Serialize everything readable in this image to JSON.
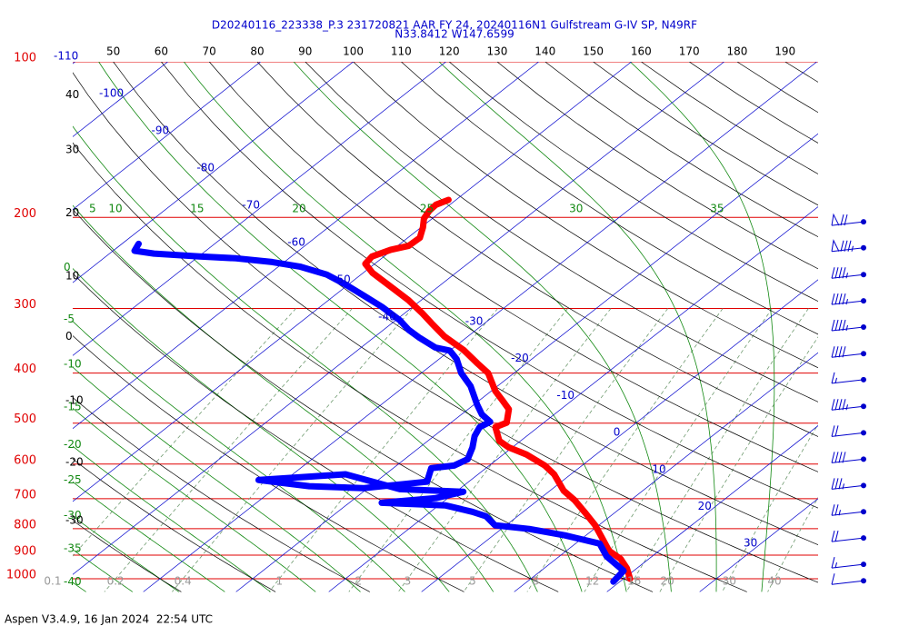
{
  "chart_data": {
    "type": "skewt",
    "title": "D20240116_223338_P.3 231720821 AAR FY 24, 20240116N1 Gulfstream G-IV SP, N49RF",
    "subtitle": "N33.8412 W147.6599",
    "footer": "Aspen V3.4.9, 16 Jan 2024  22:54 UTC",
    "log_y": true,
    "ylim": [
      100,
      1000
    ],
    "yticks": [
      100,
      200,
      300,
      400,
      500,
      600,
      700,
      800,
      900,
      1000
    ],
    "pressure_color": "#e00000",
    "isotherms": {
      "color": "#0000cc",
      "values": [
        -110,
        -100,
        -90,
        -80,
        -70,
        -60,
        -50,
        -40,
        -30,
        -20,
        -10,
        0,
        10,
        20,
        30
      ]
    },
    "dry_adiabats": {
      "color": "#000000",
      "values": [
        -30,
        -20,
        -10,
        0,
        10,
        20,
        30,
        40,
        50,
        60,
        70,
        80,
        90,
        100,
        110,
        120,
        130,
        140,
        150,
        160,
        170,
        180,
        190
      ]
    },
    "moist_adiabats": {
      "color": "#118811",
      "values": [
        -40,
        -35,
        -30,
        -25,
        -20,
        -15,
        -10,
        -5,
        0,
        5,
        10,
        15,
        20,
        25,
        30,
        35
      ]
    },
    "mixing_ratios": {
      "color": "#6f9a6f",
      "values": [
        0.1,
        0.2,
        0.4,
        1,
        2,
        3,
        5,
        8,
        12,
        16,
        20,
        30,
        40
      ]
    },
    "series": [
      {
        "color": "#ff0000",
        "pressure": [
          1000,
          954,
          916,
          883,
          834,
          788,
          748,
          704,
          676,
          628,
          604,
          575,
          557,
          541,
          509,
          499,
          470,
          451,
          433,
          400,
          383,
          361,
          340,
          320,
          307,
          289,
          272,
          256,
          246,
          238,
          231,
          227,
          219,
          209,
          201,
          194,
          189,
          185
        ],
        "values": [
          20.7,
          18.9,
          17.0,
          14.6,
          12.1,
          9.6,
          7.0,
          3.9,
          1.5,
          -1.8,
          -4.0,
          -7.5,
          -10.4,
          -12.3,
          -14.6,
          -14.0,
          -15.6,
          -17.6,
          -19.6,
          -22.8,
          -25.3,
          -28.6,
          -32.5,
          -35.8,
          -38.0,
          -41.4,
          -45.2,
          -49.0,
          -51.0,
          -51.3,
          -50.2,
          -48.8,
          -48.7,
          -49.8,
          -50.9,
          -51.4,
          -51.5,
          -50.8
        ]
      },
      {
        "color": "#0000ff",
        "pressure": [
          1013,
          965,
          905,
          855,
          824,
          801,
          788,
          757,
          742,
          721,
          713,
          698,
          679,
          671,
          628,
          644,
          662,
          668,
          649,
          611,
          604,
          587,
          557,
          530,
          509,
          497,
          481,
          460,
          424,
          400,
          376,
          362,
          357,
          342,
          330,
          316,
          298,
          283,
          269,
          258,
          249,
          244,
          240,
          238,
          235,
          232,
          225
        ],
        "values": [
          19.3,
          18.9,
          15.1,
          12.6,
          7.7,
          3.0,
          -1.2,
          -3.4,
          -5.5,
          -9.3,
          -16.5,
          -11.3,
          -9.2,
          -16.4,
          -24.3,
          -32.9,
          -26.6,
          -20.5,
          -14.5,
          -15.9,
          -13.8,
          -13.2,
          -14.3,
          -15.6,
          -16.3,
          -15.9,
          -17.8,
          -19.7,
          -22.9,
          -25.7,
          -28.1,
          -30.0,
          -32.0,
          -35.0,
          -37.3,
          -39.6,
          -43.3,
          -46.9,
          -50.5,
          -53.7,
          -57.7,
          -61.3,
          -65.7,
          -69.9,
          -75.2,
          -77.7,
          -78.2
        ]
      }
    ],
    "wind": {
      "color": "#0000cc",
      "pressure": [
        204,
        229,
        258,
        290,
        326,
        367,
        412,
        464,
        522,
        587,
        660,
        742,
        834,
        938,
        1009
      ],
      "speed": [
        70,
        85,
        45,
        45,
        45,
        40,
        15,
        45,
        20,
        40,
        35,
        25,
        20,
        15,
        10
      ]
    }
  }
}
